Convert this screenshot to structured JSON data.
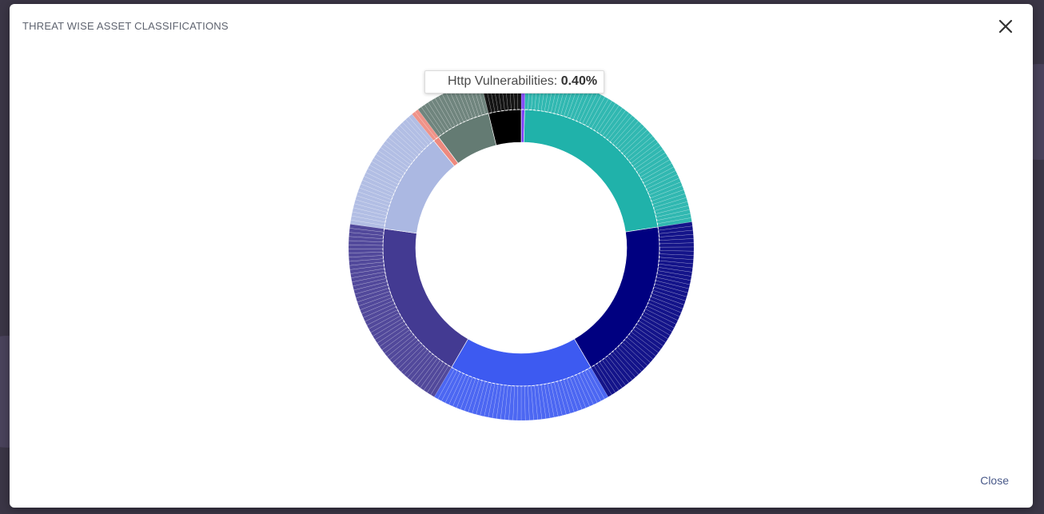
{
  "modal": {
    "title": "THREAT WISE ASSET CLASSIFICATIONS",
    "close_link": "Close",
    "close_icon": "close-icon"
  },
  "tooltip": {
    "label": "Http Vulnerabilities:",
    "value": "0.40%"
  },
  "chart_data": {
    "type": "pie",
    "donut": true,
    "legend": "none",
    "slices": [
      {
        "value": 0.4,
        "color": "#7b3ff5",
        "outer_color": "#7b3ff5"
      },
      {
        "value": 22.2,
        "color": "#20b2aa",
        "outer_color": "#20b2aa"
      },
      {
        "value": 19.0,
        "color": "#000080",
        "outer_color": "#000080"
      },
      {
        "value": 16.8,
        "color": "#3d5af1",
        "outer_color": "#3d5af1"
      },
      {
        "value": 18.8,
        "color": "#433a92",
        "outer_color": "#433a92"
      },
      {
        "value": 11.9,
        "color": "#abb8e2",
        "outer_color": "#abb8e2"
      },
      {
        "value": 0.7,
        "color": "#ee8a7f",
        "outer_color": "#ee8a7f"
      },
      {
        "value": 6.4,
        "color": "#647b73",
        "outer_color": "#647b73"
      },
      {
        "value": 3.8,
        "color": "#000000",
        "outer_color": "#000000"
      }
    ]
  }
}
